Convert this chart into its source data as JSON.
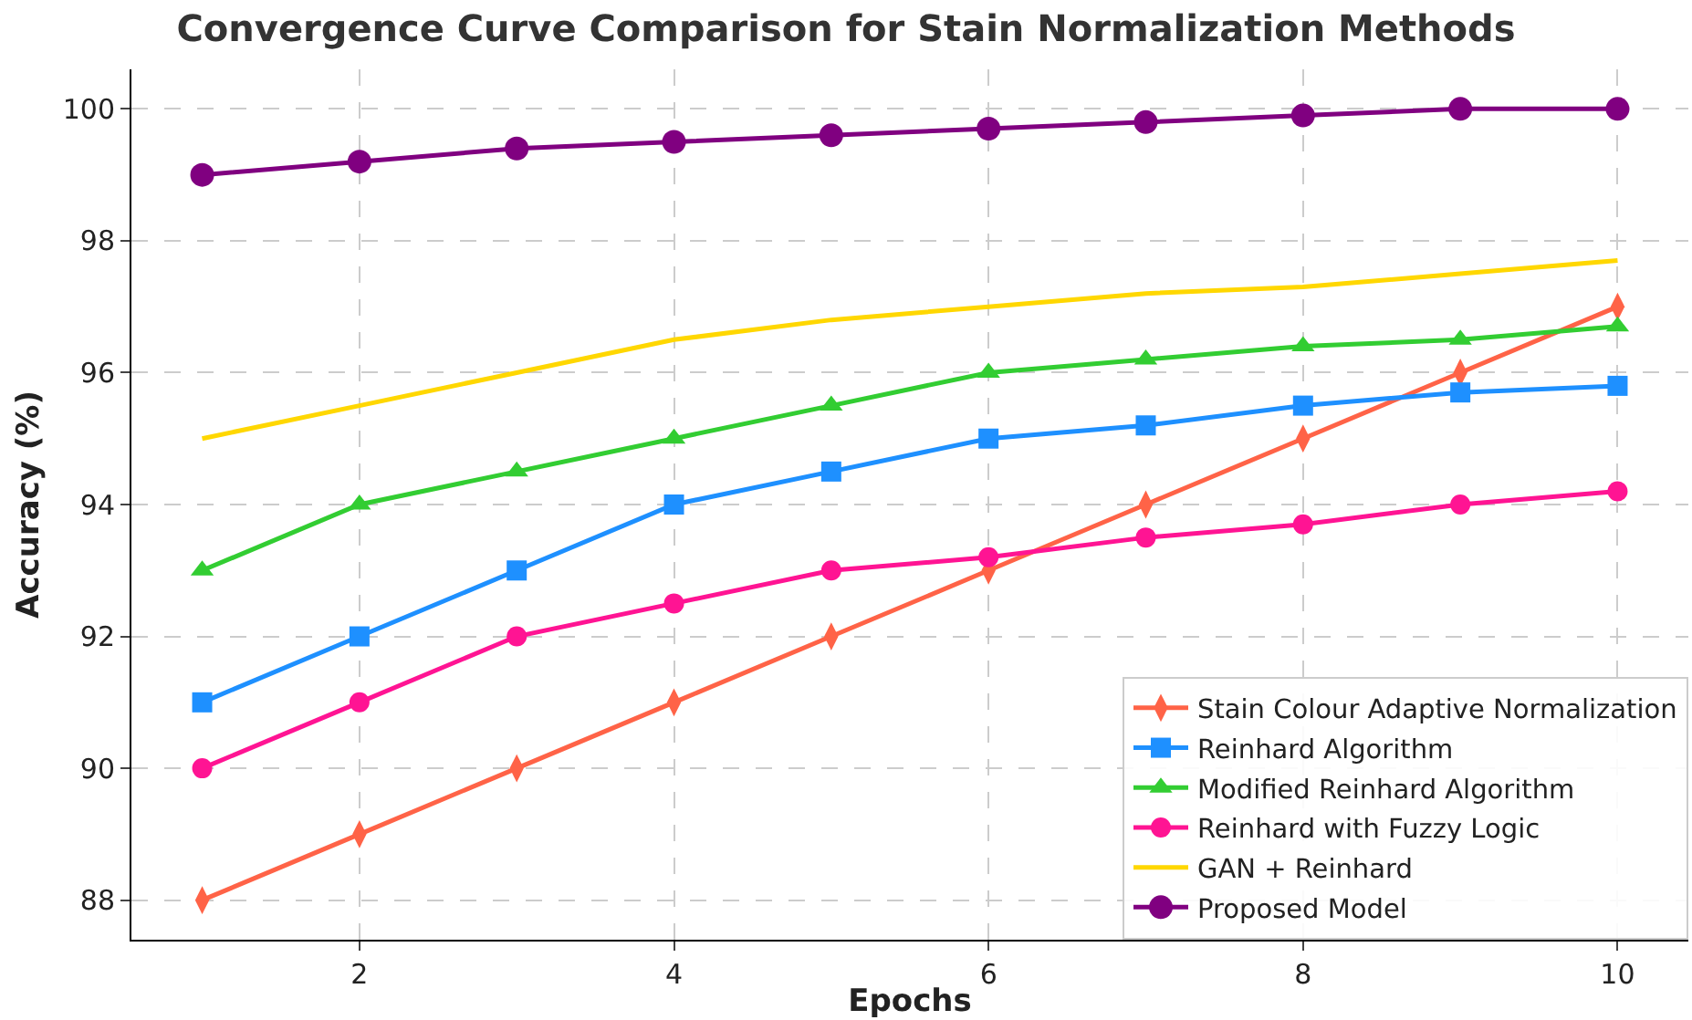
{
  "chart_data": {
    "type": "line",
    "title": "Convergence Curve Comparison for Stain Normalization Methods",
    "xlabel": "Epochs",
    "ylabel": "Accuracy (%)",
    "x": [
      1,
      2,
      3,
      4,
      5,
      6,
      7,
      8,
      9,
      10
    ],
    "series": [
      {
        "name": "Stain Colour Adaptive Normalization",
        "color": "#ff6347",
        "marker": "diamond",
        "values": [
          88,
          89,
          90,
          91,
          92,
          93,
          94,
          95,
          96,
          97
        ]
      },
      {
        "name": "Reinhard Algorithm",
        "color": "#1e90ff",
        "marker": "square",
        "values": [
          91,
          92,
          93,
          94,
          94.5,
          95,
          95.2,
          95.5,
          95.7,
          95.8
        ]
      },
      {
        "name": "Modified Reinhard Algorithm",
        "color": "#32cd32",
        "marker": "triangle",
        "values": [
          93,
          94,
          94.5,
          95,
          95.5,
          96,
          96.2,
          96.4,
          96.5,
          96.7
        ]
      },
      {
        "name": "Reinhard with Fuzzy Logic",
        "color": "#ff1493",
        "marker": "circle",
        "values": [
          90,
          91,
          92,
          92.5,
          93,
          93.2,
          93.5,
          93.7,
          94,
          94.2
        ]
      },
      {
        "name": "GAN + Reinhard",
        "color": "#ffd700",
        "marker": "none",
        "values": [
          95,
          95.5,
          96,
          96.5,
          96.8,
          97,
          97.2,
          97.3,
          97.5,
          97.7
        ]
      },
      {
        "name": "Proposed Model",
        "color": "#800080",
        "marker": "circle",
        "values": [
          99,
          99.2,
          99.4,
          99.5,
          99.6,
          99.7,
          99.8,
          99.9,
          100,
          100
        ]
      }
    ],
    "xlim": [
      0.55,
      10.45
    ],
    "ylim": [
      87.4,
      100.6
    ],
    "xticks": [
      2,
      4,
      6,
      8,
      10
    ],
    "yticks": [
      88,
      90,
      92,
      94,
      96,
      98,
      100
    ],
    "grid": true,
    "legend": "bottom right",
    "line_style": "solid"
  }
}
